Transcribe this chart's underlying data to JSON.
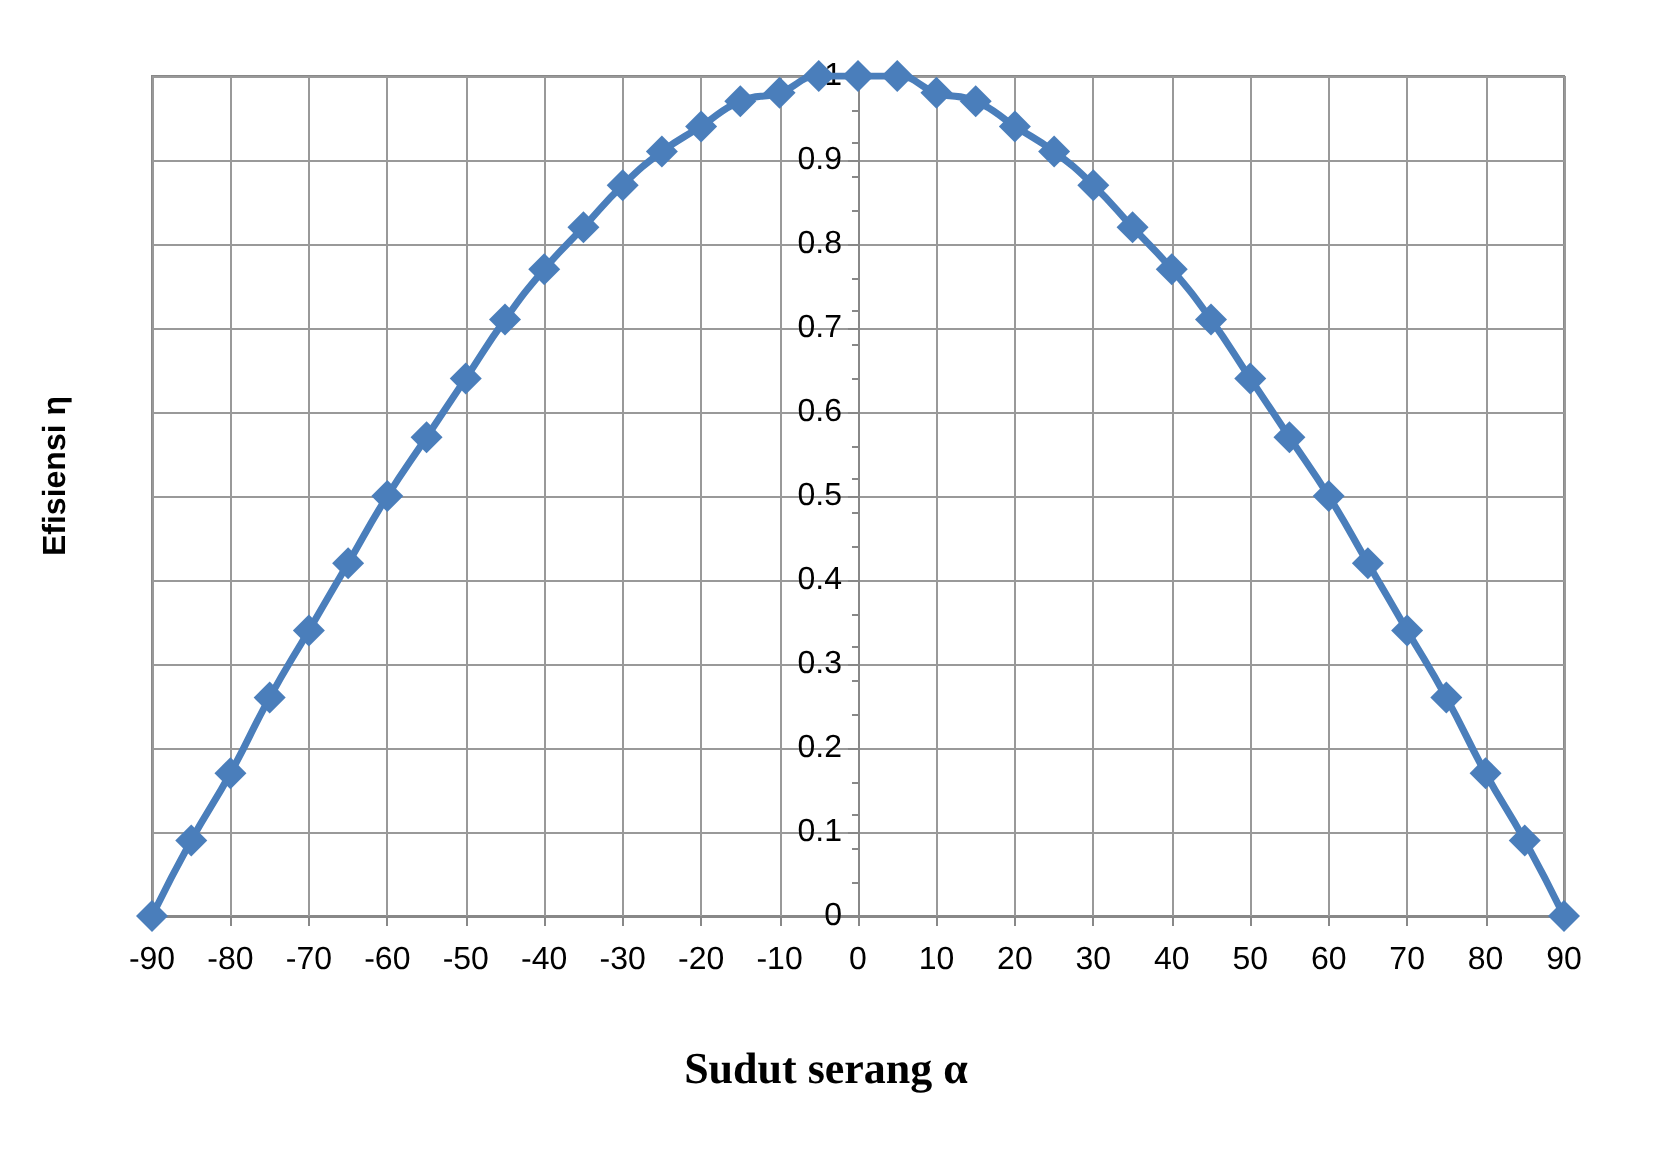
{
  "chart_data": {
    "type": "line",
    "xlabel": "Sudut serang α",
    "ylabel": "Efisiensi η",
    "x": [
      -90,
      -85,
      -80,
      -75,
      -70,
      -65,
      -60,
      -55,
      -50,
      -45,
      -40,
      -35,
      -30,
      -25,
      -20,
      -15,
      -10,
      -5,
      0,
      5,
      10,
      15,
      20,
      25,
      30,
      35,
      40,
      45,
      50,
      55,
      60,
      65,
      70,
      75,
      80,
      85,
      90
    ],
    "series": [
      {
        "color": "#4a7ebb",
        "values": [
          0,
          0.09,
          0.17,
          0.26,
          0.34,
          0.42,
          0.5,
          0.57,
          0.64,
          0.71,
          0.77,
          0.82,
          0.87,
          0.91,
          0.94,
          0.97,
          0.98,
          1,
          1,
          1,
          0.98,
          0.97,
          0.94,
          0.91,
          0.87,
          0.82,
          0.77,
          0.71,
          0.64,
          0.57,
          0.5,
          0.42,
          0.34,
          0.26,
          0.17,
          0.09,
          0
        ]
      }
    ],
    "xlim": [
      -90,
      90
    ],
    "xticks": [
      -90,
      -80,
      -70,
      -60,
      -50,
      -40,
      -30,
      -20,
      -10,
      0,
      10,
      20,
      30,
      40,
      50,
      60,
      70,
      80,
      90
    ],
    "ylim": [
      0,
      1
    ],
    "yticks": [
      0,
      0.1,
      0.2,
      0.3,
      0.4,
      0.5,
      0.6,
      0.7,
      0.8,
      0.9,
      1
    ],
    "grid": true,
    "marker": "diamond",
    "line_style": "solid"
  }
}
